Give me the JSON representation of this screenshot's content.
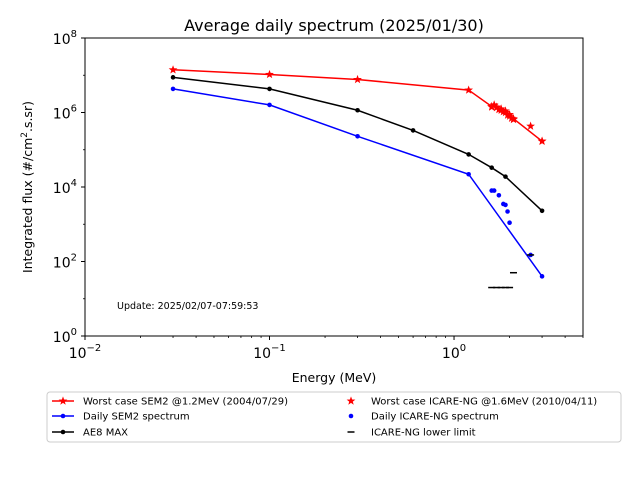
{
  "chart_data": {
    "type": "line",
    "title": "Average daily spectrum (2025/01/30)",
    "xlabel": "Energy (MeV)",
    "ylabel_main": "Integrated flux (#/cm",
    "ylabel_sup": "2",
    "ylabel_tail": ".s.sr)",
    "xscale": "log",
    "yscale": "log",
    "xlim": [
      0.01,
      5
    ],
    "ylim": [
      1,
      100000000
    ],
    "x_ticks": [
      {
        "value": 0.01,
        "base": "10",
        "exp": "−2"
      },
      {
        "value": 0.1,
        "base": "10",
        "exp": "−1"
      },
      {
        "value": 1,
        "base": "10",
        "exp": "0"
      }
    ],
    "y_ticks": [
      {
        "value": 1,
        "base": "10",
        "exp": "0"
      },
      {
        "value": 100,
        "base": "10",
        "exp": "2"
      },
      {
        "value": 10000,
        "base": "10",
        "exp": "4"
      },
      {
        "value": 1000000,
        "base": "10",
        "exp": "6"
      },
      {
        "value": 100000000,
        "base": "10",
        "exp": "8"
      }
    ],
    "annotation": "Update: 2025/02/07-07:59:53",
    "grid": false,
    "legend_position": "below plot",
    "series": [
      {
        "name": "Worst case SEM2 @1.2MeV (2004/07/29)",
        "color": "#ff0000",
        "style": "line",
        "marker": "star",
        "x": [
          0.03,
          0.1,
          0.3,
          1.2,
          1.6,
          1.65,
          1.7,
          1.8,
          1.9,
          2.0,
          2.1,
          3.0
        ],
        "y": [
          14000000,
          10500000,
          7700000,
          4000000,
          1450000,
          1600000,
          1400000,
          1250000,
          1100000,
          880000,
          680000,
          170000
        ]
      },
      {
        "name": "Daily SEM2 spectrum",
        "color": "#0000ff",
        "style": "line",
        "marker": "dot",
        "x": [
          0.03,
          0.1,
          0.3,
          1.2,
          3.0
        ],
        "y": [
          4300000,
          1600000,
          230000,
          22000,
          40
        ]
      },
      {
        "name": "AE8 MAX",
        "color": "#000000",
        "style": "line",
        "marker": "dot",
        "x": [
          0.03,
          0.1,
          0.3,
          0.6,
          1.2,
          1.6,
          1.9,
          3.0
        ],
        "y": [
          8800000,
          4300000,
          1150000,
          330000,
          75000,
          33000,
          19000,
          2300
        ]
      },
      {
        "name": "Worst case ICARE-NG @1.6MeV (2010/04/11)",
        "color": "#ff0000",
        "style": "points",
        "marker": "star",
        "x": [
          1.6,
          1.65,
          1.7,
          1.75,
          1.8,
          1.85,
          1.9,
          1.95,
          2.0,
          2.05,
          2.1,
          2.6,
          3.0
        ],
        "y": [
          1400000,
          1550000,
          1350000,
          1200000,
          1150000,
          1050000,
          1000000,
          850000,
          800000,
          700000,
          650000,
          430000,
          170000
        ]
      },
      {
        "name": "Daily ICARE-NG spectrum",
        "color": "#0000ff",
        "style": "points",
        "marker": "dot",
        "x": [
          1.6,
          1.65,
          1.75,
          1.85,
          1.9,
          1.95,
          2.0,
          2.6
        ],
        "y": [
          8000,
          8000,
          6000,
          3500,
          3300,
          2200,
          1100,
          150
        ]
      },
      {
        "name": "ICARE-NG lower limit",
        "color": "#000000",
        "style": "points",
        "marker": "hline",
        "x": [
          1.6,
          1.7,
          1.8,
          1.9,
          2.0,
          2.1,
          2.6
        ],
        "y": [
          20,
          20,
          20,
          20,
          20,
          50,
          150
        ]
      }
    ]
  }
}
